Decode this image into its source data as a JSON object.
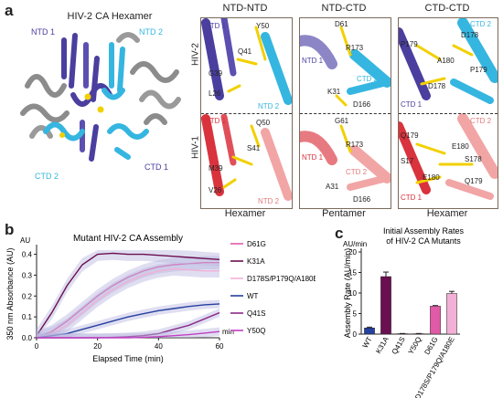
{
  "panel_a": {
    "label": "a",
    "hexamer_title": "HIV-2 CA Hexamer",
    "hex_labels": {
      "ntd1": "NTD 1",
      "ntd2": "NTD 2",
      "ctd1": "CTD 1",
      "ctd2": "CTD 2"
    },
    "col_titles": [
      "NTD-NTD",
      "NTD-CTD",
      "CTD-CTD"
    ],
    "col_footers": [
      "Hexamer",
      "Pentamer",
      "Hexamer"
    ],
    "row_labels": [
      "HIV-2",
      "HIV-1"
    ],
    "p1_top": {
      "y50": "Y50",
      "q41": "Q41",
      "g39": "G39",
      "l26": "L26",
      "ntd1": "NTD 1",
      "ntd2": "NTD 2"
    },
    "p1_bot": {
      "q50": "Q50",
      "s41": "S41",
      "m39": "M39",
      "v26": "V26",
      "ntd1": "NTD 1",
      "ntd2": "NTD 2"
    },
    "p2_top": {
      "d61": "D61",
      "r173": "R173",
      "k31": "K31",
      "d166": "D166",
      "ntd1": "NTD 1",
      "ctd2": "CTD 2"
    },
    "p2_bot": {
      "g61": "G61",
      "r173": "R173",
      "a31": "A31",
      "d166": "D166",
      "ntd1": "NTD 1",
      "ctd2": "CTD 2"
    },
    "p3_top": {
      "p179": "P179",
      "d178": "D178",
      "a180": "A180",
      "p179b": "P179",
      "d178b": "D178",
      "ctd1": "CTD 1",
      "ctd2": "CTD 2"
    },
    "p3_bot": {
      "q179": "Q179",
      "e180": "E180",
      "s178": "S178",
      "s17": "S17",
      "e180b": "E180",
      "q179b": "Q179",
      "ctd1": "CTD 1",
      "ctd2": "CTD 2"
    }
  },
  "panel_b": {
    "label": "b",
    "yunit": "AU",
    "xunit": "min"
  },
  "panel_c": {
    "label": "c",
    "yunit": "AU/min"
  },
  "colors": {
    "ntd1": "#4a3f9f",
    "ntd2": "#35b6e0",
    "gray": "#8c8c8c",
    "hiv1_dark": "#d9333d",
    "hiv1_light": "#f2a5a5",
    "D61G": "#e05aa7",
    "K31A": "#6a0f50",
    "D178S/P179Q/A180E": "#f2b0d6",
    "WT": "#2540a0",
    "Q41S": "#8a2a8a",
    "Y50Q": "#c040c0"
  },
  "chart_data": [
    {
      "type": "line",
      "title": "Mutant HIV-2 CA Assembly",
      "xlabel": "Elapsed Time (min)",
      "ylabel": "350 nm Absorbance (AU)",
      "xlim": [
        0,
        60
      ],
      "ylim": [
        0,
        0.42
      ],
      "xticks": [
        0,
        20,
        40,
        60
      ],
      "yticks": [
        0.0,
        0.1,
        0.2,
        0.3,
        0.4
      ],
      "legend": "right",
      "x": [
        0,
        5,
        10,
        15,
        20,
        25,
        30,
        35,
        40,
        45,
        50,
        55,
        60
      ],
      "series": [
        {
          "name": "D61G",
          "values": [
            0.0,
            0.03,
            0.08,
            0.14,
            0.2,
            0.25,
            0.29,
            0.32,
            0.34,
            0.35,
            0.355,
            0.36,
            0.36
          ]
        },
        {
          "name": "K31A",
          "values": [
            0.01,
            0.12,
            0.25,
            0.35,
            0.4,
            0.405,
            0.4,
            0.4,
            0.395,
            0.39,
            0.385,
            0.38,
            0.375
          ]
        },
        {
          "name": "D178S/P179Q/A180E",
          "values": [
            0.0,
            0.02,
            0.06,
            0.12,
            0.18,
            0.23,
            0.27,
            0.3,
            0.32,
            0.33,
            0.325,
            0.32,
            0.32
          ]
        },
        {
          "name": "WT",
          "values": [
            0.0,
            0.01,
            0.02,
            0.04,
            0.06,
            0.08,
            0.1,
            0.115,
            0.13,
            0.14,
            0.15,
            0.158,
            0.162
          ]
        },
        {
          "name": "Q41S",
          "values": [
            0.0,
            0.0,
            0.0,
            0.0,
            0.0,
            0.002,
            0.005,
            0.01,
            0.02,
            0.04,
            0.06,
            0.09,
            0.12
          ]
        },
        {
          "name": "Y50Q",
          "values": [
            0.0,
            0.0,
            0.0,
            0.0,
            0.0,
            0.0,
            0.0,
            0.002,
            0.005,
            0.01,
            0.015,
            0.022,
            0.03
          ]
        }
      ]
    },
    {
      "type": "bar",
      "title": "Initial Assembly Rates of HIV-2 CA Mutants",
      "xlabel": "",
      "ylabel": "Assembly Rate (AU/min)",
      "ylim": [
        0,
        20
      ],
      "yticks": [
        0,
        5,
        10,
        15,
        20
      ],
      "categories": [
        "WT",
        "K31A",
        "Q41S",
        "Y50Q",
        "D61G",
        "D178S/P179Q/A180E"
      ],
      "values": [
        1.5,
        14.0,
        0.1,
        0.1,
        6.8,
        9.9
      ],
      "errors": [
        0.2,
        1.1,
        0.05,
        0.05,
        0.15,
        0.5
      ]
    }
  ]
}
